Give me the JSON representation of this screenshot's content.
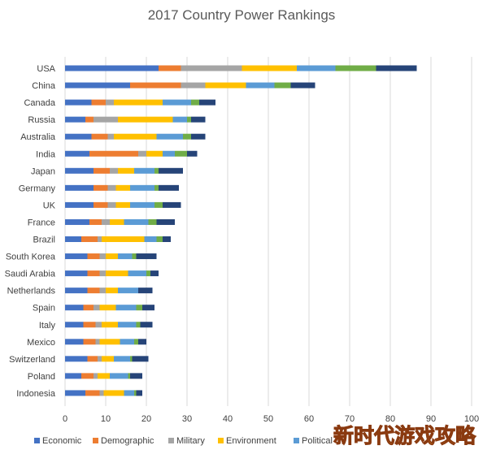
{
  "chart_data": {
    "type": "bar",
    "orientation": "horizontal",
    "stacked": true,
    "title": "2017 Country Power Rankings",
    "categories": [
      "USA",
      "China",
      "Canada",
      "Russia",
      "Australia",
      "India",
      "Japan",
      "Germany",
      "UK",
      "France",
      "Brazil",
      "South Korea",
      "Saudi Arabia",
      "Netherlands",
      "Spain",
      "Italy",
      "Mexico",
      "Switzerland",
      "Poland",
      "Indonesia"
    ],
    "series": [
      {
        "name": "Economic",
        "color": "#4472c4",
        "values": [
          23,
          16,
          6.5,
          5,
          6.5,
          6,
          7,
          7,
          7,
          6,
          4,
          5.5,
          5.5,
          5.5,
          4.5,
          4.5,
          4.5,
          5.5,
          4,
          5
        ]
      },
      {
        "name": "Demographic",
        "color": "#ed7d31",
        "values": [
          5.5,
          12.5,
          3.5,
          2,
          4,
          12,
          4,
          3.5,
          3.5,
          3,
          4,
          3,
          3,
          3,
          2.5,
          3,
          3,
          2.5,
          3,
          3.5
        ]
      },
      {
        "name": "Military",
        "color": "#a5a5a5",
        "values": [
          15,
          6,
          2,
          6,
          1.5,
          2,
          2,
          2,
          2,
          2,
          1,
          1.5,
          1.5,
          1.5,
          1.5,
          1.5,
          1,
          1,
          1,
          1
        ]
      },
      {
        "name": "Environment",
        "color": "#ffc000",
        "values": [
          13.5,
          10,
          12,
          13.5,
          10.5,
          4,
          4,
          3.5,
          3.5,
          3.5,
          10.5,
          3,
          5.5,
          3,
          4,
          4,
          5,
          3,
          3,
          5
        ]
      },
      {
        "name": "Political",
        "color": "#5b9bd5",
        "values": [
          9.5,
          7,
          7,
          3.5,
          6.5,
          3,
          5,
          6,
          6,
          6,
          3,
          3.5,
          4.5,
          5,
          5,
          4.5,
          3.5,
          4,
          4.5,
          2.5
        ]
      },
      {
        "name": "",
        "color": "#70ad47",
        "values": [
          10,
          4,
          2,
          1,
          2,
          3,
          1,
          1,
          2,
          2,
          1.5,
          1,
          1,
          0,
          1.5,
          1,
          1,
          0.5,
          0.5,
          0.5
        ]
      },
      {
        "name": "",
        "color": "#264478",
        "values": [
          10,
          6,
          4,
          3.5,
          3.5,
          2.5,
          6,
          5,
          4.5,
          4.5,
          2,
          5,
          2,
          3.5,
          3,
          3,
          2,
          4,
          3,
          1.5
        ]
      }
    ],
    "xlim": [
      0,
      100
    ],
    "xticks": [
      "0",
      "10",
      "20",
      "30",
      "40",
      "50",
      "60",
      "70",
      "80",
      "90",
      "100"
    ],
    "xlabel": "",
    "ylabel": "",
    "grid": "vertical",
    "legend_position": "bottom"
  },
  "watermark": "新时代游戏攻略"
}
